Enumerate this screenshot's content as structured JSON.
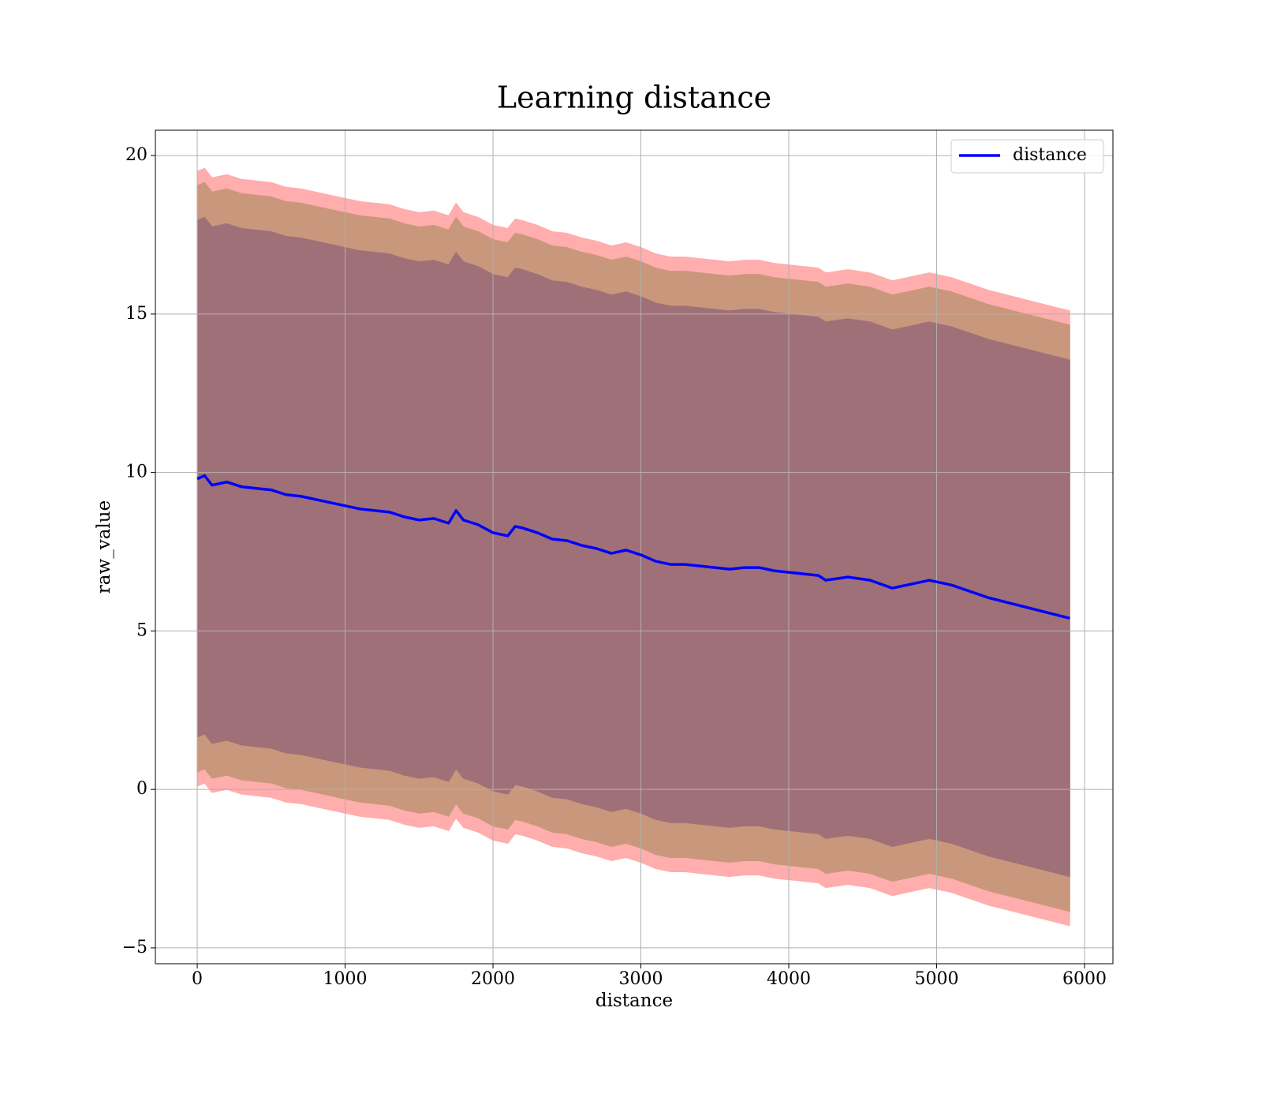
{
  "chart_data": {
    "type": "line",
    "title": "Learning distance",
    "xlabel": "distance",
    "ylabel": "raw_value",
    "x": [
      0,
      50,
      100,
      200,
      300,
      400,
      500,
      600,
      700,
      800,
      900,
      1000,
      1100,
      1200,
      1300,
      1400,
      1500,
      1600,
      1700,
      1750,
      1800,
      1900,
      2000,
      2100,
      2150,
      2200,
      2300,
      2400,
      2500,
      2600,
      2700,
      2800,
      2900,
      3000,
      3100,
      3200,
      3300,
      3400,
      3500,
      3600,
      3700,
      3800,
      3900,
      4000,
      4100,
      4200,
      4250,
      4400,
      4550,
      4700,
      4800,
      4950,
      5100,
      5350,
      5900
    ],
    "series": [
      {
        "name": "distance",
        "color": "#0000ff",
        "values": [
          9.8,
          9.9,
          9.6,
          9.7,
          9.55,
          9.5,
          9.45,
          9.3,
          9.25,
          9.15,
          9.05,
          8.95,
          8.85,
          8.8,
          8.75,
          8.6,
          8.5,
          8.55,
          8.4,
          8.8,
          8.5,
          8.35,
          8.1,
          8.0,
          8.3,
          8.25,
          8.1,
          7.9,
          7.85,
          7.7,
          7.6,
          7.45,
          7.55,
          7.4,
          7.2,
          7.1,
          7.1,
          7.05,
          7.0,
          6.95,
          7.0,
          7.0,
          6.9,
          6.85,
          6.8,
          6.75,
          6.6,
          6.7,
          6.6,
          6.35,
          6.45,
          6.6,
          6.45,
          6.05,
          5.4
        ]
      }
    ],
    "bands": [
      {
        "color": "#ffadad",
        "error": [
          9.7,
          9.7,
          9.7,
          9.7,
          9.7,
          9.7,
          9.7,
          9.7,
          9.7,
          9.7,
          9.7,
          9.7,
          9.7,
          9.7,
          9.7,
          9.7,
          9.7,
          9.7,
          9.7,
          9.7,
          9.7,
          9.7,
          9.7,
          9.7,
          9.7,
          9.7,
          9.7,
          9.7,
          9.7,
          9.7,
          9.7,
          9.7,
          9.7,
          9.7,
          9.7,
          9.7,
          9.7,
          9.7,
          9.7,
          9.7,
          9.7,
          9.7,
          9.7,
          9.7,
          9.7,
          9.7,
          9.7,
          9.7,
          9.7,
          9.7,
          9.7,
          9.7,
          9.7,
          9.7,
          9.7
        ]
      },
      {
        "color": "#c9977b",
        "error": [
          9.25,
          9.25,
          9.25,
          9.25,
          9.25,
          9.25,
          9.25,
          9.25,
          9.25,
          9.25,
          9.25,
          9.25,
          9.25,
          9.25,
          9.25,
          9.25,
          9.25,
          9.25,
          9.25,
          9.25,
          9.25,
          9.25,
          9.25,
          9.25,
          9.25,
          9.25,
          9.25,
          9.25,
          9.25,
          9.25,
          9.25,
          9.25,
          9.25,
          9.25,
          9.25,
          9.25,
          9.25,
          9.25,
          9.25,
          9.25,
          9.25,
          9.25,
          9.25,
          9.25,
          9.25,
          9.25,
          9.25,
          9.25,
          9.25,
          9.25,
          9.25,
          9.25,
          9.25,
          9.25,
          9.25
        ]
      },
      {
        "color": "#a07078",
        "error": [
          8.15,
          8.15,
          8.15,
          8.15,
          8.15,
          8.15,
          8.15,
          8.15,
          8.15,
          8.15,
          8.15,
          8.15,
          8.15,
          8.15,
          8.15,
          8.15,
          8.15,
          8.15,
          8.15,
          8.15,
          8.15,
          8.15,
          8.15,
          8.15,
          8.15,
          8.15,
          8.15,
          8.15,
          8.15,
          8.15,
          8.15,
          8.15,
          8.15,
          8.15,
          8.15,
          8.15,
          8.15,
          8.15,
          8.15,
          8.15,
          8.15,
          8.15,
          8.15,
          8.15,
          8.15,
          8.15,
          8.15,
          8.15,
          8.15,
          8.15,
          8.15,
          8.15,
          8.15,
          8.15,
          8.15
        ]
      }
    ],
    "xlim": [
      -283,
      6192
    ],
    "ylim": [
      -5.5,
      20.8
    ],
    "xticks": [
      0,
      1000,
      2000,
      3000,
      4000,
      5000,
      6000
    ],
    "yticks": [
      {
        "value": -5,
        "label": "−5"
      },
      0,
      5,
      10,
      15,
      20
    ],
    "grid": true,
    "legend": "upper right"
  }
}
